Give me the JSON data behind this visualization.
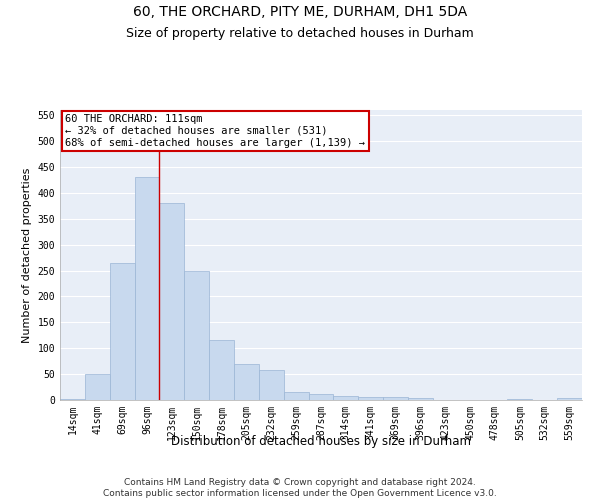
{
  "title": "60, THE ORCHARD, PITY ME, DURHAM, DH1 5DA",
  "subtitle": "Size of property relative to detached houses in Durham",
  "xlabel": "Distribution of detached houses by size in Durham",
  "ylabel": "Number of detached properties",
  "bar_color": "#c8d9ee",
  "bar_edge_color": "#9ab5d5",
  "background_color": "#e8eef7",
  "grid_color": "#ffffff",
  "categories": [
    "14sqm",
    "41sqm",
    "69sqm",
    "96sqm",
    "123sqm",
    "150sqm",
    "178sqm",
    "205sqm",
    "232sqm",
    "259sqm",
    "287sqm",
    "314sqm",
    "341sqm",
    "369sqm",
    "396sqm",
    "423sqm",
    "450sqm",
    "478sqm",
    "505sqm",
    "532sqm",
    "559sqm"
  ],
  "values": [
    2,
    50,
    265,
    430,
    380,
    250,
    115,
    70,
    58,
    15,
    12,
    7,
    6,
    5,
    4,
    0,
    0,
    0,
    1,
    0,
    3
  ],
  "property_bin_index": 3.5,
  "annotation_text": "60 THE ORCHARD: 111sqm\n← 32% of detached houses are smaller (531)\n68% of semi-detached houses are larger (1,139) →",
  "vline_color": "#cc0000",
  "annotation_box_edgecolor": "#cc0000",
  "annotation_box_facecolor": "#ffffff",
  "ylim": [
    0,
    560
  ],
  "yticks": [
    0,
    50,
    100,
    150,
    200,
    250,
    300,
    350,
    400,
    450,
    500,
    550
  ],
  "footer_line1": "Contains HM Land Registry data © Crown copyright and database right 2024.",
  "footer_line2": "Contains public sector information licensed under the Open Government Licence v3.0.",
  "title_fontsize": 10,
  "subtitle_fontsize": 9,
  "tick_fontsize": 7,
  "ylabel_fontsize": 8,
  "xlabel_fontsize": 8.5,
  "annotation_fontsize": 7.5,
  "footer_fontsize": 6.5
}
